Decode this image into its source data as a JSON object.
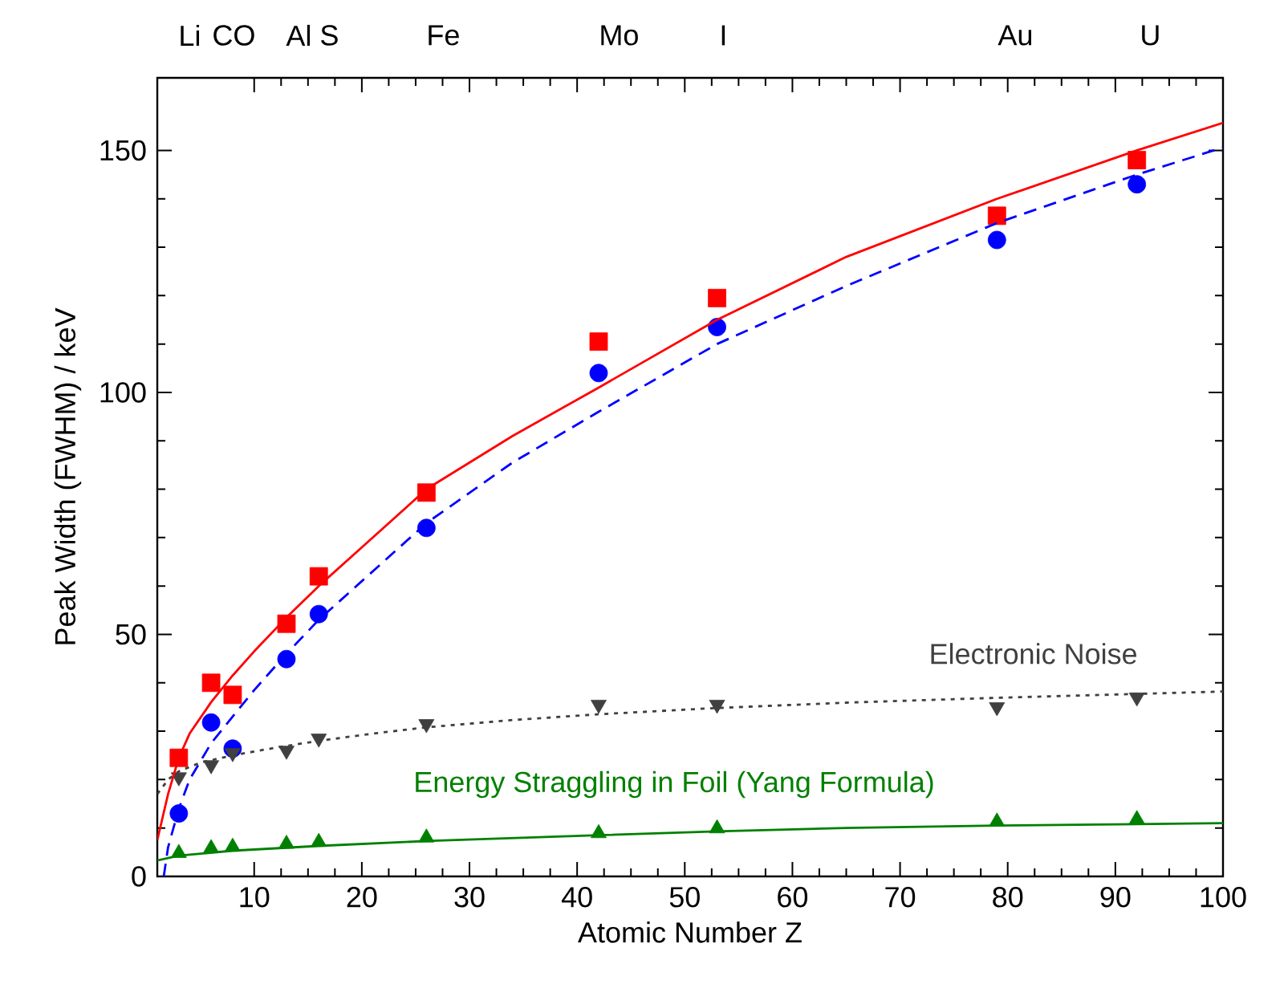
{
  "chart_data": {
    "type": "scatter",
    "xlabel": "Atomic Number Z",
    "ylabel": "Peak Width (FWHM) / keV",
    "xlim": [
      1,
      100
    ],
    "ylim": [
      0,
      165
    ],
    "xticks": [
      10,
      20,
      30,
      40,
      50,
      60,
      70,
      80,
      90,
      100
    ],
    "yticks": [
      0,
      50,
      100,
      150
    ],
    "annotations": [
      "Li",
      "C",
      "O",
      "Al",
      "S",
      "Fe",
      "Mo",
      "I",
      "Au",
      "U"
    ],
    "grid": false,
    "series": [
      {
        "type": "scatter",
        "marker": "square",
        "color": "#ff0000",
        "x": [
          3,
          6,
          8,
          13,
          16,
          26,
          42,
          53,
          79,
          92
        ],
        "values": [
          24.5,
          40,
          37.5,
          52.2,
          62,
          79.3,
          110.5,
          119.5,
          136.5,
          148
        ]
      },
      {
        "type": "scatter",
        "marker": "circle",
        "color": "#0000ff",
        "x": [
          3,
          6,
          8,
          13,
          16,
          26,
          42,
          53,
          79,
          92
        ],
        "values": [
          13,
          31.8,
          26.4,
          44.9,
          54.2,
          72,
          104,
          113.5,
          131.5,
          143
        ]
      },
      {
        "type": "scatter",
        "marker": "triangle-down",
        "color": "#404040",
        "x": [
          3,
          6,
          8,
          13,
          16,
          26,
          42,
          53,
          79,
          92
        ],
        "values": [
          20.5,
          23,
          25.5,
          26,
          28.5,
          31.5,
          35.5,
          35.5,
          35,
          37
        ]
      },
      {
        "type": "scatter",
        "marker": "triangle",
        "color": "#008000",
        "x": [
          3,
          6,
          8,
          13,
          16,
          26,
          42,
          53,
          79,
          92
        ],
        "values": [
          4.8,
          5.8,
          6.1,
          6.7,
          7.1,
          8,
          8.9,
          9.9,
          11.3,
          11.8
        ]
      },
      {
        "type": "line",
        "line_style": "solid",
        "color": "#ff0000",
        "x": [
          1,
          2,
          3,
          4,
          6,
          8,
          10,
          13,
          16,
          20,
          26,
          34,
          42,
          53,
          65,
          79,
          92,
          100
        ],
        "values": [
          7.5,
          17,
          24.5,
          29.5,
          36,
          41.5,
          46.5,
          53.5,
          60,
          68,
          80,
          91,
          101,
          115,
          128,
          140,
          150,
          155.7
        ]
      },
      {
        "type": "line",
        "line_style": "dashed",
        "color": "#0000ff",
        "x": [
          1.6,
          2,
          3,
          4,
          6,
          8,
          10,
          13,
          16,
          20,
          26,
          34,
          42,
          53,
          65,
          79,
          92,
          100
        ],
        "values": [
          0,
          6,
          14,
          20,
          27.5,
          33,
          38.5,
          46,
          53,
          61,
          73,
          85.5,
          96,
          110,
          122,
          135,
          145,
          150.6
        ]
      },
      {
        "type": "line",
        "line_style": "dotted",
        "color": "#404040",
        "name": "Electronic Noise",
        "x": [
          1,
          2,
          3,
          5,
          8,
          12,
          16,
          21,
          26,
          34,
          42,
          53,
          65,
          79,
          92,
          100
        ],
        "values": [
          17,
          20,
          21.7,
          23.5,
          25,
          26.6,
          28,
          29.5,
          30.8,
          32.3,
          33.5,
          34.8,
          35.9,
          36.9,
          37.7,
          38.2
        ]
      },
      {
        "type": "line",
        "line_style": "solid",
        "color": "#008000",
        "name": "Energy Straggling in Foil (Yang Formula)",
        "x": [
          1,
          3,
          8,
          16,
          26,
          42,
          53,
          65,
          79,
          92,
          100
        ],
        "values": [
          3.3,
          4.3,
          5.3,
          6.3,
          7.3,
          8.5,
          9.3,
          10,
          10.5,
          10.8,
          11
        ]
      }
    ]
  }
}
